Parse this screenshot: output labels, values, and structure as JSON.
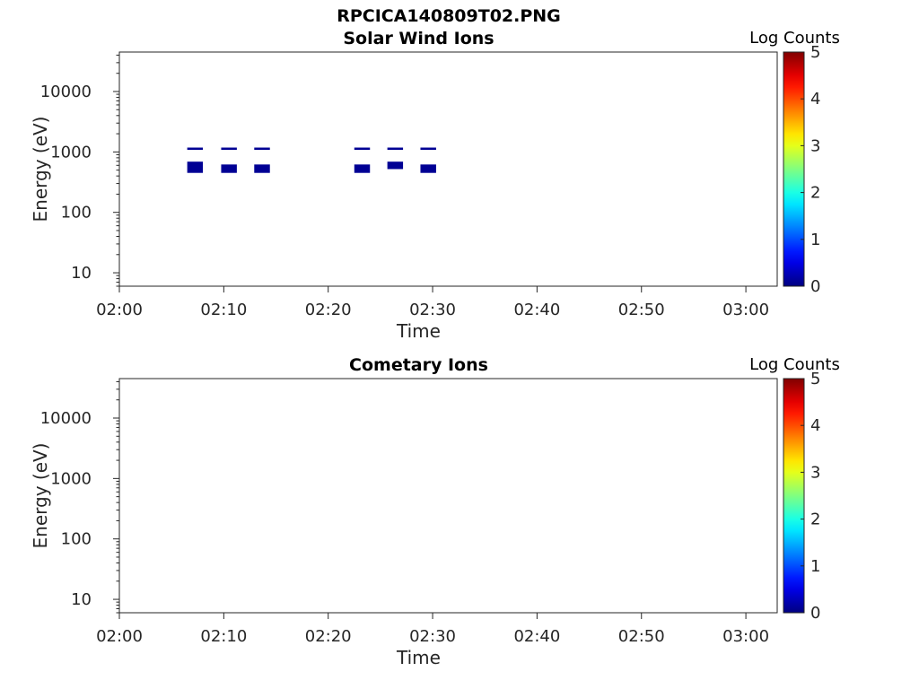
{
  "figure_title": "RPCICA140809T02.PNG",
  "chart_data": [
    {
      "type": "heatmap",
      "title": "Solar Wind Ions",
      "xlabel": "Time",
      "ylabel": "Energy (eV)",
      "y_scale": "log",
      "xlim": [
        "02:00",
        "03:03"
      ],
      "ylim": [
        6,
        45000
      ],
      "x_ticks": [
        "02:00",
        "02:10",
        "02:20",
        "02:30",
        "02:40",
        "02:50",
        "03:00"
      ],
      "y_ticks": [
        10,
        100,
        1000,
        10000
      ],
      "y_tick_labels": [
        "10",
        "100",
        "1000",
        "10000"
      ],
      "colorbar": {
        "label": "Log Counts",
        "range": [
          0,
          5
        ],
        "ticks": [
          "0",
          "1",
          "2",
          "3",
          "4",
          "5"
        ],
        "colormap": "jet"
      },
      "cells": [
        {
          "t_start": "02:06:30",
          "t_end": "02:08:00",
          "e_low": 1100,
          "e_high": 1180,
          "log_counts": 0.1
        },
        {
          "t_start": "02:06:30",
          "t_end": "02:08:00",
          "e_low": 450,
          "e_high": 690,
          "log_counts": 0.1
        },
        {
          "t_start": "02:09:45",
          "t_end": "02:11:15",
          "e_low": 1100,
          "e_high": 1180,
          "log_counts": 0.1
        },
        {
          "t_start": "02:09:45",
          "t_end": "02:11:15",
          "e_low": 450,
          "e_high": 620,
          "log_counts": 0.1
        },
        {
          "t_start": "02:12:55",
          "t_end": "02:14:25",
          "e_low": 1100,
          "e_high": 1180,
          "log_counts": 0.1
        },
        {
          "t_start": "02:12:55",
          "t_end": "02:14:25",
          "e_low": 450,
          "e_high": 620,
          "log_counts": 0.1
        },
        {
          "t_start": "02:22:30",
          "t_end": "02:24:00",
          "e_low": 1100,
          "e_high": 1180,
          "log_counts": 0.1
        },
        {
          "t_start": "02:22:30",
          "t_end": "02:24:00",
          "e_low": 450,
          "e_high": 620,
          "log_counts": 0.1
        },
        {
          "t_start": "02:25:40",
          "t_end": "02:27:10",
          "e_low": 1100,
          "e_high": 1180,
          "log_counts": 0.1
        },
        {
          "t_start": "02:25:40",
          "t_end": "02:27:10",
          "e_low": 520,
          "e_high": 690,
          "log_counts": 0.1
        },
        {
          "t_start": "02:28:50",
          "t_end": "02:30:20",
          "e_low": 1100,
          "e_high": 1180,
          "log_counts": 0.1
        },
        {
          "t_start": "02:28:50",
          "t_end": "02:30:20",
          "e_low": 450,
          "e_high": 620,
          "log_counts": 0.1
        }
      ]
    },
    {
      "type": "heatmap",
      "title": "Cometary Ions",
      "xlabel": "Time",
      "ylabel": "Energy (eV)",
      "y_scale": "log",
      "xlim": [
        "02:00",
        "03:03"
      ],
      "ylim": [
        6,
        45000
      ],
      "x_ticks": [
        "02:00",
        "02:10",
        "02:20",
        "02:30",
        "02:40",
        "02:50",
        "03:00"
      ],
      "y_ticks": [
        10,
        100,
        1000,
        10000
      ],
      "y_tick_labels": [
        "10",
        "100",
        "1000",
        "10000"
      ],
      "colorbar": {
        "label": "Log Counts",
        "range": [
          0,
          5
        ],
        "ticks": [
          "0",
          "1",
          "2",
          "3",
          "4",
          "5"
        ],
        "colormap": "jet"
      },
      "cells": []
    }
  ]
}
